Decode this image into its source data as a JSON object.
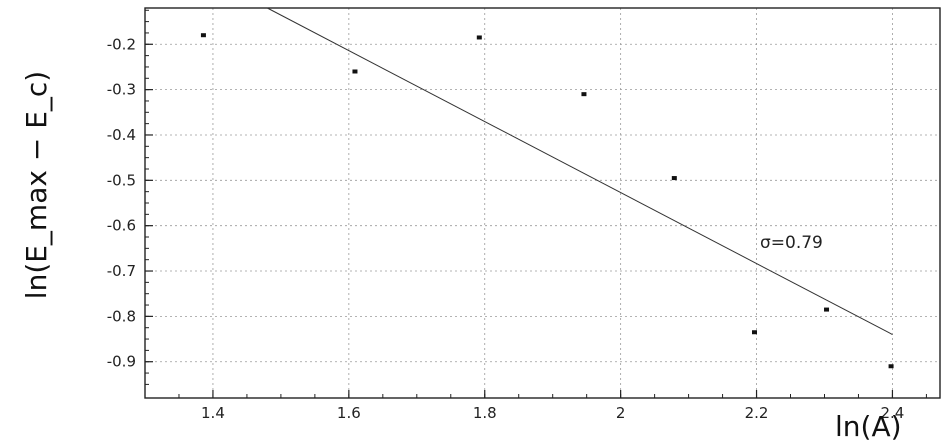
{
  "chart_data": {
    "type": "scatter",
    "xlabel": "ln(A)",
    "ylabel": "ln(E_max − E_c)",
    "xlim": [
      1.3,
      2.47
    ],
    "ylim": [
      -0.98,
      -0.12
    ],
    "xticks": [
      1.4,
      1.6,
      1.8,
      2,
      2.2,
      2.4
    ],
    "xtick_labels": [
      "1.4",
      "1.6",
      "1.8",
      "2",
      "2.2",
      "2.4"
    ],
    "yticks": [
      -0.2,
      -0.3,
      -0.4,
      -0.5,
      -0.6,
      -0.7,
      -0.8,
      -0.9
    ],
    "ytick_labels": [
      "-0.2",
      "-0.3",
      "-0.4",
      "-0.5",
      "-0.6",
      "-0.7",
      "-0.8",
      "-0.9"
    ],
    "grid": true,
    "points": [
      {
        "x": 1.386,
        "y": -0.18
      },
      {
        "x": 1.609,
        "y": -0.26
      },
      {
        "x": 1.792,
        "y": -0.185
      },
      {
        "x": 1.946,
        "y": -0.31
      },
      {
        "x": 2.079,
        "y": -0.495
      },
      {
        "x": 2.197,
        "y": -0.835
      },
      {
        "x": 2.303,
        "y": -0.785
      },
      {
        "x": 2.398,
        "y": -0.91
      }
    ],
    "fit_line": {
      "x": [
        1.48,
        2.4
      ],
      "y": [
        -0.12,
        -0.84
      ]
    },
    "annotation": "σ=0.79"
  }
}
